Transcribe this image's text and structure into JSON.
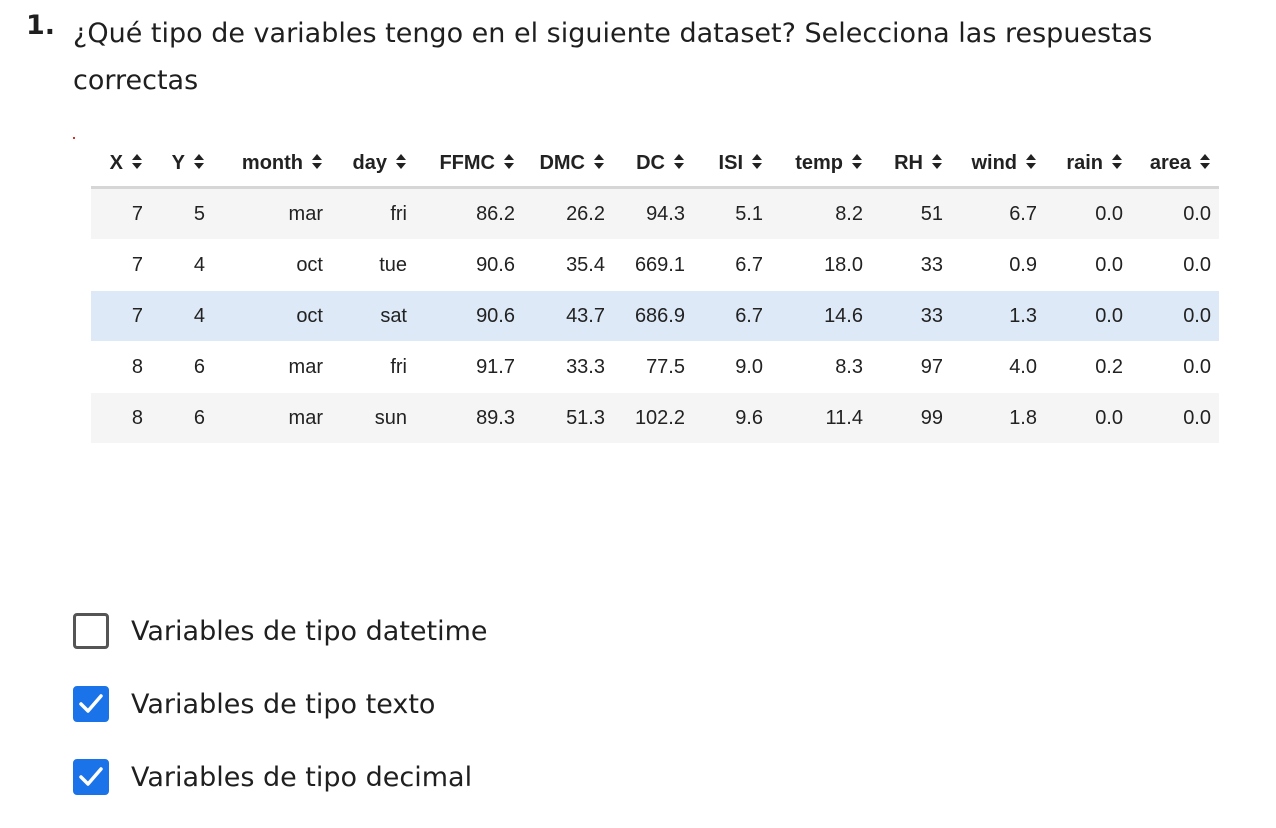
{
  "question": {
    "number": "1.",
    "text": "¿Qué tipo de variables tengo en el siguiente dataset? Selecciona las respuestas correctas"
  },
  "dataset": {
    "columns": [
      "X",
      "Y",
      "month",
      "day",
      "FFMC",
      "DMC",
      "DC",
      "ISI",
      "temp",
      "RH",
      "wind",
      "rain",
      "area"
    ],
    "rows": [
      [
        "7",
        "5",
        "mar",
        "fri",
        "86.2",
        "26.2",
        "94.3",
        "5.1",
        "8.2",
        "51",
        "6.7",
        "0.0",
        "0.0"
      ],
      [
        "7",
        "4",
        "oct",
        "tue",
        "90.6",
        "35.4",
        "669.1",
        "6.7",
        "18.0",
        "33",
        "0.9",
        "0.0",
        "0.0"
      ],
      [
        "7",
        "4",
        "oct",
        "sat",
        "90.6",
        "43.7",
        "686.9",
        "6.7",
        "14.6",
        "33",
        "1.3",
        "0.0",
        "0.0"
      ],
      [
        "8",
        "6",
        "mar",
        "fri",
        "91.7",
        "33.3",
        "77.5",
        "9.0",
        "8.3",
        "97",
        "4.0",
        "0.2",
        "0.0"
      ],
      [
        "8",
        "6",
        "mar",
        "sun",
        "89.3",
        "51.3",
        "102.2",
        "9.6",
        "11.4",
        "99",
        "1.8",
        "0.0",
        "0.0"
      ]
    ],
    "sort_icon": "sort-arrows-icon",
    "highlight_color": "#dde9f7",
    "stripe_color": "#f5f5f5"
  },
  "options": [
    {
      "label": "Variables de tipo datetime",
      "checked": false
    },
    {
      "label": "Variables de tipo texto",
      "checked": true
    },
    {
      "label": "Variables de tipo decimal",
      "checked": true
    }
  ],
  "colors": {
    "checkbox_checked": "#1a73e8",
    "checkbox_unchecked_border": "#555555"
  }
}
